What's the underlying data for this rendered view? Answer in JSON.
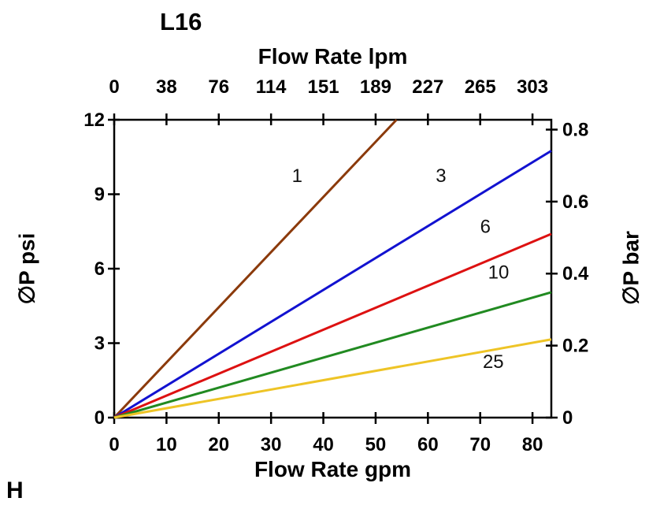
{
  "page": {
    "corner_label": "H"
  },
  "chart_data": {
    "type": "line",
    "title": "L16",
    "axes": {
      "bottom": {
        "label": "Flow Rate gpm",
        "ticks": [
          0,
          10,
          20,
          30,
          40,
          50,
          60,
          70,
          80
        ],
        "range": [
          0,
          83.6
        ]
      },
      "top": {
        "label": "Flow Rate lpm",
        "tick_labels": [
          "0",
          "38",
          "76",
          "114",
          "151",
          "189",
          "227",
          "265",
          "303"
        ],
        "tick_positions_gpm": [
          0,
          10,
          20,
          30,
          40,
          50,
          60,
          70,
          80
        ]
      },
      "left": {
        "label": "∅P psi",
        "ticks": [
          0,
          3,
          6,
          9,
          12
        ],
        "range": [
          0,
          12
        ]
      },
      "right": {
        "label": "∅P bar",
        "values": [
          0,
          0.2,
          0.4,
          0.6,
          0.8
        ],
        "labels": [
          "0",
          "0.2",
          "0.4",
          "0.6",
          "0.8"
        ],
        "psi_per_bar": 14.504
      }
    },
    "grid": false,
    "legend": "inline-labels",
    "series": [
      {
        "name": "1",
        "color": "#8b3a0b",
        "points": [
          [
            0,
            0
          ],
          [
            54,
            12
          ]
        ],
        "label_at": [
          35,
          9.5
        ]
      },
      {
        "name": "3",
        "color": "#1212d0",
        "points": [
          [
            0,
            0
          ],
          [
            83.6,
            10.75
          ]
        ],
        "label_at": [
          62.5,
          9.5
        ]
      },
      {
        "name": "6",
        "color": "#dd1111",
        "points": [
          [
            0,
            0
          ],
          [
            83.6,
            7.4
          ]
        ],
        "label_at": [
          71,
          7.45
        ]
      },
      {
        "name": "10",
        "color": "#218a21",
        "points": [
          [
            0,
            0
          ],
          [
            83.6,
            5.05
          ]
        ],
        "label_at": [
          73.5,
          5.6
        ]
      },
      {
        "name": "25",
        "color": "#eec426",
        "points": [
          [
            0,
            0
          ],
          [
            83.6,
            3.15
          ]
        ],
        "label_at": [
          72.5,
          2.0
        ]
      }
    ]
  }
}
